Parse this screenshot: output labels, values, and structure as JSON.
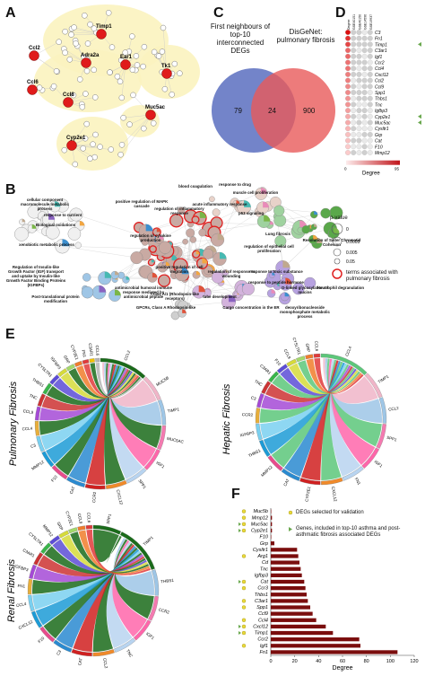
{
  "panels": {
    "A": "A",
    "B": "B",
    "C": "C",
    "D": "D",
    "E": "E",
    "F": "F"
  },
  "panelA": {
    "hubs": [
      "Timp1",
      "Ccl2",
      "Adra2a",
      "Ear1",
      "Ccl6",
      "Ccl8",
      "Tk1",
      "Muc5ac",
      "Cyp2e1"
    ]
  },
  "panelC": {
    "left_title": "First neighbours of top-10 interconnected DEGs",
    "right_title": "DisGeNet: pulmonary fibrosis",
    "left_only": "79",
    "overlap": "24",
    "right_only": "900"
  },
  "panelD": {
    "columns": [
      "Degree",
      "GSE40151",
      "GSE40150",
      "GSE14596",
      "GSE19937"
    ],
    "genes": [
      "C3",
      "Fn1",
      "Timp1",
      "C3ar1",
      "Igf1",
      "Ccr2",
      "Ccl4",
      "Cxcl12",
      "Ccl2",
      "Ccl9",
      "Spp1",
      "Thbs1",
      "Tnc",
      "Igfbp3",
      "Cyp2e1",
      "Muc5ac",
      "Cysltr1",
      "Grp",
      "Cat",
      "F10",
      "Mmp12"
    ],
    "legend_label": "Degree",
    "scale_min": "0",
    "scale_max": "95"
  },
  "panelB": {
    "pvalue_title": "p-value",
    "pvalue_levels": [
      "0",
      "0.0005",
      "0.005",
      "0.05"
    ],
    "red_ring_label": "terms associated with pulmonary fibrosis",
    "terms": [
      "cellular component macromolecule metabolic process",
      "response to nutrient",
      "Biological oxidations",
      "xenobiotic metabolic process",
      "Regulation of Insulin-like Growth Factor (IGF) transport and uptake by Insulin-like Growth Factor Binding Proteins (IGFBPs)",
      "Post-translational protein modification",
      "positive regulation of MAPK cascade",
      "regulation of inflammatory response",
      "blood coagulation",
      "response to drug",
      "muscle cell proliferation",
      "acute inflammatory response",
      "p53 signaling",
      "regulation of cytokine production",
      "Lung fibrosis",
      "regulation of epithelial cell proliferation",
      "Resolution of Sister Chromatid Cohesion",
      "response to toxic substance",
      "response to peptide hormone",
      "O-linked glycosylation of mucins",
      "regulation of response to wounding",
      "positive regulation of cell migration",
      "antimicrobial humoral immune response mediated by antimicrobial peptide",
      "Class A/1 (Rhodopsin-like receptors)",
      "GPCRs, Class A Rhodopsin-like",
      "tube development",
      "Cargo concentration in the ER",
      "deoxyribonucleoside monophosphate metabolic process",
      "Neutrophil degranulation"
    ]
  },
  "panelE": {
    "pulmonary": {
      "title": "Pulmonary Fibrosis",
      "labels": [
        "CCL2",
        "MUC5B",
        "TIMP1",
        "MUC5AC",
        "IGF1",
        "SPP1",
        "CXCL12",
        "CCR2",
        "CAT",
        "F10",
        "MMP12",
        "C3",
        "CCL4",
        "CCL9",
        "TNC",
        "THBS1",
        "CYSLTR1",
        "IGFBP3",
        "GRP",
        "CYP2E1",
        "FN1",
        "C3AR1",
        "CCL6"
      ]
    },
    "hepatic": {
      "title": "Hepatic Fibrosis",
      "labels": [
        "CCL4",
        "TIMP1",
        "CCL2",
        "SPP1",
        "IGF1",
        "FN1",
        "CXCL12",
        "CYP2E1",
        "CAT",
        "MMP12",
        "THBS1",
        "IGFBP3",
        "CCR2",
        "C3",
        "TNC",
        "C3AR1",
        "F10",
        "CCL9",
        "CYSLTR1",
        "GRP",
        "CCL6"
      ]
    },
    "renal": {
      "title": "Renal Fibrosis",
      "labels": [
        "SPP1",
        "TIMP1",
        "THBS1",
        "CCR2",
        "IGF1",
        "TNC",
        "CCL2",
        "CAT",
        "C3",
        "F10",
        "CXCL12",
        "CCL4",
        "FN1",
        "IGFBP3",
        "C3AR1",
        "CYSLTR1",
        "MMP12",
        "GRP",
        "CYP2E1",
        "CCL9",
        "CCL6"
      ]
    }
  },
  "panelF": {
    "legend_validation": "DEGs selected for validation",
    "legend_genes": "Genes, included in top-10 asthma and post-asthmatic fibrosis associated DEGs",
    "xlabel": "Degree",
    "colors": {
      "bar": "#7a0d0d",
      "validation": "#e8d83a",
      "top10": "#6aa84f"
    }
  },
  "chart_data": {
    "type": "bar",
    "orientation": "horizontal",
    "xlabel": "Degree",
    "xlim": [
      0,
      120
    ],
    "xticks": [
      0,
      20,
      40,
      60,
      80,
      100,
      120
    ],
    "categories": [
      "Muc5b",
      "Mmp12",
      "Muc5ac",
      "Cyp2e1",
      "F10",
      "Grp",
      "Cysltr1",
      "Arg1",
      "Cd",
      "Tnc",
      "Igfbp3",
      "Cat",
      "Ccr3",
      "Thbs1",
      "C3ar1",
      "Spp1",
      "Ccl9",
      "Ccl4",
      "Cxcl12",
      "Timp1",
      "Ccr2",
      "Igf1",
      "Fn1"
    ],
    "values": [
      0,
      1,
      1,
      1,
      0,
      3,
      22,
      23,
      24,
      25,
      26,
      28,
      29,
      30,
      31,
      33,
      35,
      38,
      46,
      52,
      74,
      75,
      106
    ],
    "validation": [
      "Muc5b",
      "Mmp12",
      "Muc5ac",
      "Cyp2e1",
      "Arg1",
      "Cat",
      "Ccr3",
      "C3ar1",
      "Spp1",
      "Ccl4",
      "Cxcl12",
      "Ccl2",
      "Timp1",
      "Igf1"
    ],
    "top10": [
      "Muc5ac",
      "Cyp2e1",
      "Cat",
      "Cxcl12",
      "Timp1",
      "C3"
    ]
  }
}
